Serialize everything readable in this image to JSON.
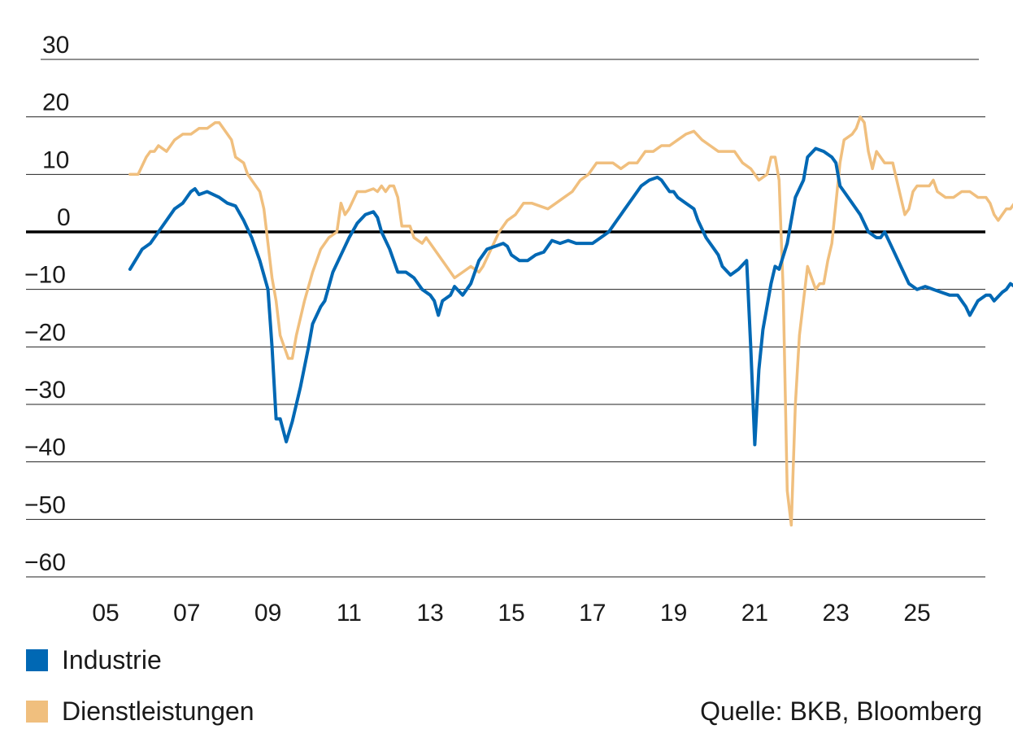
{
  "chart_data": {
    "type": "line",
    "title": "",
    "xlabel": "",
    "ylabel": "",
    "ylim": [
      -60,
      30
    ],
    "y_ticks": [
      30,
      20,
      10,
      0,
      -10,
      -20,
      -30,
      -40,
      -50,
      -60
    ],
    "y_tick_labels": [
      "30",
      "20",
      "10",
      "0",
      "−10",
      "−20",
      "−30",
      "−40",
      "−50",
      "−60"
    ],
    "x_ticks": [
      2005,
      2007,
      2009,
      2011,
      2013,
      2015,
      2017,
      2019,
      2021,
      2023,
      2025
    ],
    "x_tick_labels": [
      "05",
      "07",
      "09",
      "11",
      "13",
      "15",
      "17",
      "19",
      "21",
      "23",
      "25"
    ],
    "grid": true,
    "zero_line": true,
    "legend_position": "bottom-left",
    "source": "Quelle: BKB, Bloomberg",
    "series": [
      {
        "name": "Industrie",
        "color": "#0068b4",
        "points": [
          [
            2005.6,
            -6.5
          ],
          [
            2005.9,
            -3
          ],
          [
            2006.1,
            -2
          ],
          [
            2006.4,
            1
          ],
          [
            2006.7,
            4
          ],
          [
            2006.9,
            5
          ],
          [
            2007.1,
            7
          ],
          [
            2007.2,
            7.5
          ],
          [
            2007.3,
            6.5
          ],
          [
            2007.5,
            7
          ],
          [
            2007.8,
            6
          ],
          [
            2008.0,
            5
          ],
          [
            2008.2,
            4.5
          ],
          [
            2008.4,
            2
          ],
          [
            2008.6,
            -1
          ],
          [
            2008.8,
            -5
          ],
          [
            2009.0,
            -10
          ],
          [
            2009.1,
            -20
          ],
          [
            2009.2,
            -32.5
          ],
          [
            2009.3,
            -32.5
          ],
          [
            2009.45,
            -36.5
          ],
          [
            2009.6,
            -33
          ],
          [
            2009.8,
            -27
          ],
          [
            2010.0,
            -20
          ],
          [
            2010.1,
            -16
          ],
          [
            2010.3,
            -13
          ],
          [
            2010.4,
            -12
          ],
          [
            2010.6,
            -7
          ],
          [
            2010.8,
            -4
          ],
          [
            2011.0,
            -1
          ],
          [
            2011.2,
            1.5
          ],
          [
            2011.4,
            3
          ],
          [
            2011.6,
            3.5
          ],
          [
            2011.7,
            2.5
          ],
          [
            2011.8,
            0
          ],
          [
            2012.0,
            -3
          ],
          [
            2012.1,
            -5
          ],
          [
            2012.2,
            -7
          ],
          [
            2012.4,
            -7
          ],
          [
            2012.6,
            -8
          ],
          [
            2012.8,
            -10
          ],
          [
            2013.0,
            -11
          ],
          [
            2013.1,
            -12
          ],
          [
            2013.2,
            -14.5
          ],
          [
            2013.3,
            -12
          ],
          [
            2013.5,
            -11
          ],
          [
            2013.6,
            -9.5
          ],
          [
            2013.8,
            -11
          ],
          [
            2014.0,
            -9
          ],
          [
            2014.1,
            -7
          ],
          [
            2014.2,
            -5
          ],
          [
            2014.4,
            -3
          ],
          [
            2014.6,
            -2.5
          ],
          [
            2014.8,
            -2
          ],
          [
            2014.9,
            -2.5
          ],
          [
            2015.0,
            -4
          ],
          [
            2015.2,
            -5
          ],
          [
            2015.4,
            -5
          ],
          [
            2015.6,
            -4
          ],
          [
            2015.8,
            -3.5
          ],
          [
            2016.0,
            -1.5
          ],
          [
            2016.2,
            -2
          ],
          [
            2016.4,
            -1.5
          ],
          [
            2016.6,
            -2
          ],
          [
            2016.8,
            -2
          ],
          [
            2017.0,
            -2
          ],
          [
            2017.2,
            -1
          ],
          [
            2017.4,
            0
          ],
          [
            2017.6,
            2
          ],
          [
            2017.8,
            4
          ],
          [
            2018.0,
            6
          ],
          [
            2018.2,
            8
          ],
          [
            2018.4,
            9
          ],
          [
            2018.6,
            9.5
          ],
          [
            2018.7,
            9
          ],
          [
            2018.8,
            8
          ],
          [
            2018.9,
            7
          ],
          [
            2019.0,
            7
          ],
          [
            2019.1,
            6
          ],
          [
            2019.3,
            5
          ],
          [
            2019.5,
            4
          ],
          [
            2019.6,
            2
          ],
          [
            2019.8,
            -1
          ],
          [
            2020.0,
            -3
          ],
          [
            2020.1,
            -4
          ],
          [
            2020.2,
            -6
          ],
          [
            2020.4,
            -7.5
          ],
          [
            2020.6,
            -6.5
          ],
          [
            2020.8,
            -5
          ],
          [
            2020.9,
            -20
          ],
          [
            2021.0,
            -37
          ],
          [
            2021.1,
            -24
          ],
          [
            2021.2,
            -17
          ],
          [
            2021.3,
            -13
          ],
          [
            2021.4,
            -9
          ],
          [
            2021.5,
            -6
          ],
          [
            2021.6,
            -6.5
          ],
          [
            2021.8,
            -2
          ],
          [
            2022.0,
            6
          ],
          [
            2022.2,
            9
          ],
          [
            2022.3,
            13
          ],
          [
            2022.5,
            14.5
          ],
          [
            2022.7,
            14
          ],
          [
            2022.9,
            13
          ],
          [
            2023.0,
            12
          ],
          [
            2023.1,
            8
          ],
          [
            2023.2,
            7
          ],
          [
            2023.4,
            5
          ],
          [
            2023.6,
            3
          ],
          [
            2023.8,
            0
          ],
          [
            2024.0,
            -1
          ],
          [
            2024.1,
            -1
          ],
          [
            2024.2,
            0
          ],
          [
            2024.4,
            -3
          ],
          [
            2024.6,
            -6
          ],
          [
            2024.8,
            -9
          ],
          [
            2025.0,
            -10
          ],
          [
            2025.2,
            -9.5
          ],
          [
            2025.4,
            -10
          ],
          [
            2025.6,
            -10.5
          ],
          [
            2025.8,
            -11
          ],
          [
            2025.9,
            -11
          ],
          [
            2026.0,
            -11
          ],
          [
            2026.1,
            -12
          ],
          [
            2026.2,
            -13
          ],
          [
            2026.3,
            -14.5
          ],
          [
            2026.5,
            -12
          ],
          [
            2026.7,
            -11
          ],
          [
            2026.8,
            -11
          ],
          [
            2026.9,
            -12
          ],
          [
            2027.1,
            -10.5
          ],
          [
            2027.2,
            -10
          ],
          [
            2027.3,
            -9
          ],
          [
            2027.4,
            -9.5
          ]
        ]
      },
      {
        "name": "Dienstleistungen",
        "color": "#f0bf7e",
        "points": [
          [
            2005.6,
            10
          ],
          [
            2005.8,
            10
          ],
          [
            2006.0,
            13
          ],
          [
            2006.1,
            14
          ],
          [
            2006.2,
            14
          ],
          [
            2006.3,
            15
          ],
          [
            2006.5,
            14
          ],
          [
            2006.7,
            16
          ],
          [
            2006.9,
            17
          ],
          [
            2007.1,
            17
          ],
          [
            2007.3,
            18
          ],
          [
            2007.5,
            18
          ],
          [
            2007.7,
            19
          ],
          [
            2007.8,
            19
          ],
          [
            2007.9,
            18
          ],
          [
            2008.1,
            16
          ],
          [
            2008.2,
            13
          ],
          [
            2008.4,
            12
          ],
          [
            2008.5,
            10
          ],
          [
            2008.7,
            8
          ],
          [
            2008.8,
            7
          ],
          [
            2008.9,
            4
          ],
          [
            2009.0,
            -2
          ],
          [
            2009.1,
            -8
          ],
          [
            2009.2,
            -12
          ],
          [
            2009.3,
            -18
          ],
          [
            2009.4,
            -20
          ],
          [
            2009.5,
            -22
          ],
          [
            2009.6,
            -22
          ],
          [
            2009.7,
            -18
          ],
          [
            2009.9,
            -12
          ],
          [
            2010.1,
            -7
          ],
          [
            2010.3,
            -3
          ],
          [
            2010.5,
            -1
          ],
          [
            2010.7,
            0
          ],
          [
            2010.8,
            5
          ],
          [
            2010.9,
            3
          ],
          [
            2011.0,
            4
          ],
          [
            2011.2,
            7
          ],
          [
            2011.4,
            7
          ],
          [
            2011.6,
            7.5
          ],
          [
            2011.7,
            7
          ],
          [
            2011.8,
            8
          ],
          [
            2011.9,
            7
          ],
          [
            2012.0,
            8
          ],
          [
            2012.1,
            8
          ],
          [
            2012.2,
            6
          ],
          [
            2012.3,
            1
          ],
          [
            2012.5,
            1
          ],
          [
            2012.6,
            -1
          ],
          [
            2012.8,
            -2
          ],
          [
            2012.9,
            -1
          ],
          [
            2013.0,
            -2
          ],
          [
            2013.2,
            -4
          ],
          [
            2013.4,
            -6
          ],
          [
            2013.6,
            -8
          ],
          [
            2013.8,
            -7
          ],
          [
            2014.0,
            -6
          ],
          [
            2014.2,
            -7
          ],
          [
            2014.3,
            -6
          ],
          [
            2014.5,
            -3
          ],
          [
            2014.7,
            0
          ],
          [
            2014.9,
            2
          ],
          [
            2015.1,
            3
          ],
          [
            2015.3,
            5
          ],
          [
            2015.5,
            5
          ],
          [
            2015.7,
            4.5
          ],
          [
            2015.9,
            4
          ],
          [
            2016.1,
            5
          ],
          [
            2016.3,
            6
          ],
          [
            2016.5,
            7
          ],
          [
            2016.7,
            9
          ],
          [
            2016.9,
            10
          ],
          [
            2017.1,
            12
          ],
          [
            2017.3,
            12
          ],
          [
            2017.5,
            12
          ],
          [
            2017.7,
            11
          ],
          [
            2017.9,
            12
          ],
          [
            2018.1,
            12
          ],
          [
            2018.3,
            14
          ],
          [
            2018.5,
            14
          ],
          [
            2018.7,
            15
          ],
          [
            2018.9,
            15
          ],
          [
            2019.1,
            16
          ],
          [
            2019.3,
            17
          ],
          [
            2019.5,
            17.5
          ],
          [
            2019.7,
            16
          ],
          [
            2019.9,
            15
          ],
          [
            2020.1,
            14
          ],
          [
            2020.3,
            14
          ],
          [
            2020.5,
            14
          ],
          [
            2020.7,
            12
          ],
          [
            2020.9,
            11
          ],
          [
            2021.1,
            9
          ],
          [
            2021.3,
            10
          ],
          [
            2021.4,
            13
          ],
          [
            2021.5,
            13
          ],
          [
            2021.6,
            9
          ],
          [
            2021.7,
            -10
          ],
          [
            2021.8,
            -45
          ],
          [
            2021.9,
            -51
          ],
          [
            2022.0,
            -30
          ],
          [
            2022.1,
            -18
          ],
          [
            2022.2,
            -12
          ],
          [
            2022.3,
            -6
          ],
          [
            2022.4,
            -8
          ],
          [
            2022.5,
            -10
          ],
          [
            2022.6,
            -9
          ],
          [
            2022.7,
            -9
          ],
          [
            2022.8,
            -5
          ],
          [
            2022.9,
            -2
          ],
          [
            2023.0,
            5
          ],
          [
            2023.1,
            12
          ],
          [
            2023.2,
            16
          ],
          [
            2023.4,
            17
          ],
          [
            2023.5,
            18
          ],
          [
            2023.6,
            20
          ],
          [
            2023.7,
            19
          ],
          [
            2023.8,
            14
          ],
          [
            2023.9,
            11
          ],
          [
            2024.0,
            14
          ],
          [
            2024.1,
            13
          ],
          [
            2024.2,
            12
          ],
          [
            2024.4,
            12
          ],
          [
            2024.5,
            9
          ],
          [
            2024.6,
            6
          ],
          [
            2024.7,
            3
          ],
          [
            2024.8,
            4
          ],
          [
            2024.9,
            7
          ],
          [
            2025.0,
            8
          ],
          [
            2025.1,
            8
          ],
          [
            2025.3,
            8
          ],
          [
            2025.4,
            9
          ],
          [
            2025.5,
            7
          ],
          [
            2025.7,
            6
          ],
          [
            2025.9,
            6
          ],
          [
            2026.1,
            7
          ],
          [
            2026.3,
            7
          ],
          [
            2026.5,
            6
          ],
          [
            2026.7,
            6
          ],
          [
            2026.8,
            5
          ],
          [
            2026.9,
            3
          ],
          [
            2027.0,
            2
          ],
          [
            2027.1,
            3
          ],
          [
            2027.2,
            4
          ],
          [
            2027.3,
            4
          ],
          [
            2027.4,
            5
          ],
          [
            2027.5,
            5
          ]
        ]
      }
    ]
  }
}
